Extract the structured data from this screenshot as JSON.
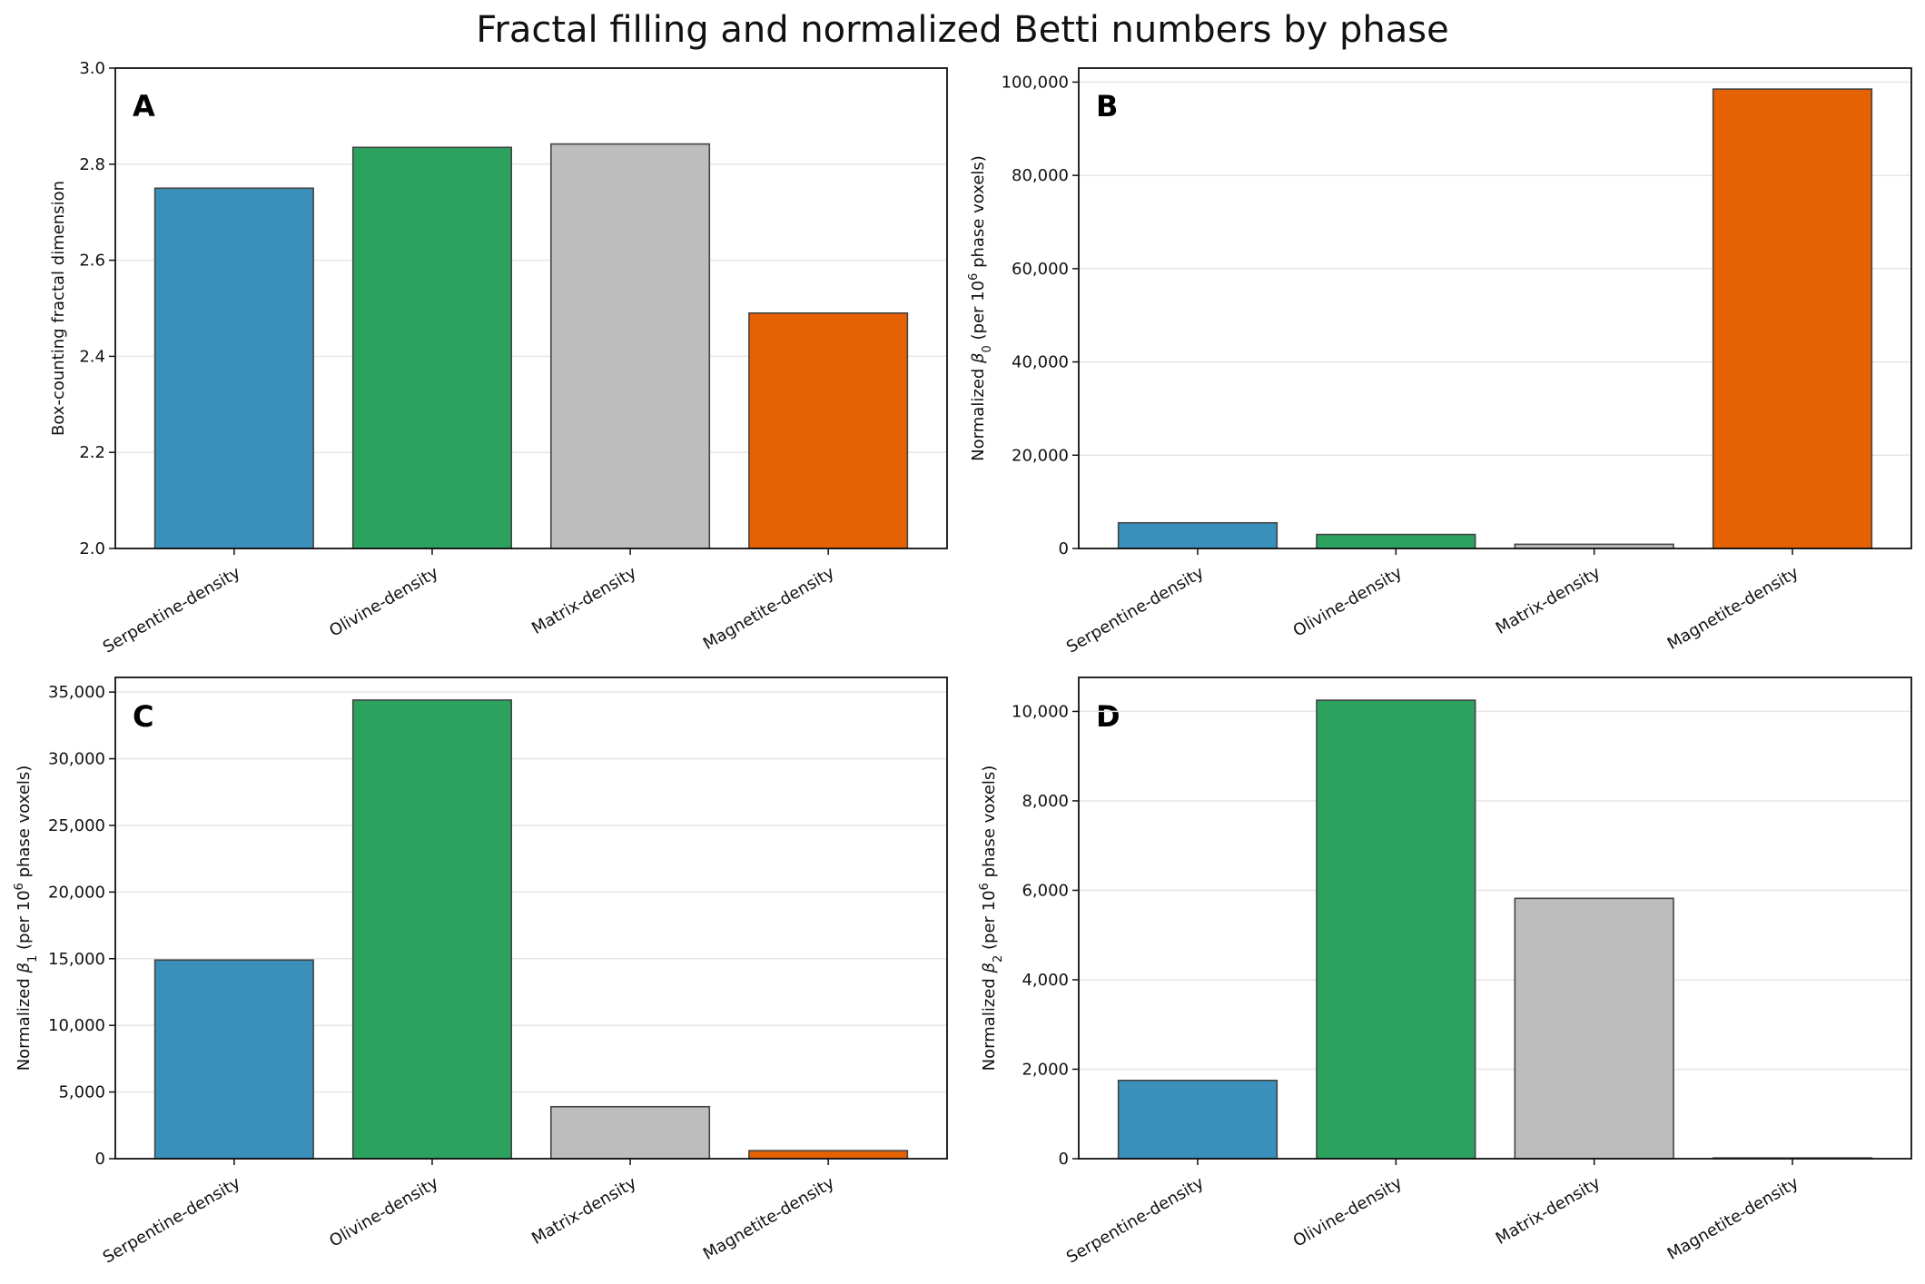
{
  "figure": {
    "title": "Fractal filling and normalized Betti numbers by phase"
  },
  "colors": {
    "serpentine": "#3a8fbb",
    "olivine": "#2ca25f",
    "matrix": "#bdbdbd",
    "magnetite": "#e66101",
    "edge": "#444444",
    "grid": "#e6e6e6"
  },
  "chart_data": [
    {
      "panel": "A",
      "type": "bar",
      "categories": [
        "Serpentine-density",
        "Olivine-density",
        "Matrix-density",
        "Magnetite-density"
      ],
      "values": [
        2.75,
        2.835,
        2.842,
        2.49
      ],
      "ylabel": {
        "main": "Box-counting fractal dimension"
      },
      "ylim": [
        2.0,
        3.0
      ],
      "yticks": [
        2.0,
        2.2,
        2.4,
        2.6,
        2.8,
        3.0
      ],
      "ytick_labels": [
        "2.0",
        "2.2",
        "2.4",
        "2.6",
        "2.8",
        "3.0"
      ],
      "grid": "y"
    },
    {
      "panel": "B",
      "type": "bar",
      "categories": [
        "Serpentine-density",
        "Olivine-density",
        "Matrix-density",
        "Magnetite-density"
      ],
      "values": [
        5500,
        3000,
        900,
        98500
      ],
      "ylabel": {
        "pre": "Normalized ",
        "sym": "β",
        "sub": "0",
        "mid": " (per 10",
        "sup": "6",
        "post": " phase voxels)"
      },
      "ylim": [
        0,
        103000
      ],
      "yticks": [
        0,
        20000,
        40000,
        60000,
        80000,
        100000
      ],
      "ytick_labels": [
        "0",
        "20,000",
        "40,000",
        "60,000",
        "80,000",
        "100,000"
      ],
      "grid": "y"
    },
    {
      "panel": "C",
      "type": "bar",
      "categories": [
        "Serpentine-density",
        "Olivine-density",
        "Matrix-density",
        "Magnetite-density"
      ],
      "values": [
        14900,
        34400,
        3900,
        600
      ],
      "ylabel": {
        "pre": "Normalized ",
        "sym": "β",
        "sub": "1",
        "mid": " (per 10",
        "sup": "6",
        "post": " phase voxels)"
      },
      "ylim": [
        0,
        36100
      ],
      "yticks": [
        0,
        5000,
        10000,
        15000,
        20000,
        25000,
        30000,
        35000
      ],
      "ytick_labels": [
        "0",
        "5,000",
        "10,000",
        "15,000",
        "20,000",
        "25,000",
        "30,000",
        "35,000"
      ],
      "grid": "y"
    },
    {
      "panel": "D",
      "type": "bar",
      "categories": [
        "Serpentine-density",
        "Olivine-density",
        "Matrix-density",
        "Magnetite-density"
      ],
      "values": [
        1750,
        10250,
        5820,
        10
      ],
      "ylabel": {
        "pre": "Normalized ",
        "sym": "β",
        "sub": "2",
        "mid": " (per 10",
        "sup": "6",
        "post": " phase voxels)"
      },
      "ylim": [
        0,
        10760
      ],
      "yticks": [
        0,
        2000,
        4000,
        6000,
        8000,
        10000
      ],
      "ytick_labels": [
        "0",
        "2,000",
        "4,000",
        "6,000",
        "8,000",
        "10,000"
      ],
      "grid": "y"
    }
  ]
}
